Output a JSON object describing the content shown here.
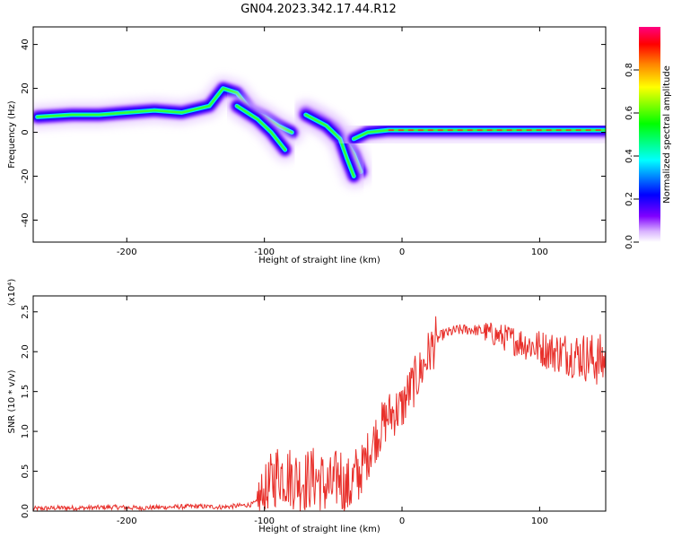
{
  "figure": {
    "title": "GN04.2023.342.17.44.R12"
  },
  "chart_data": [
    {
      "type": "heatmap",
      "xlabel": "Height of straight line (km)",
      "ylabel": "Frequency (Hz)",
      "xlim": [
        -268,
        148
      ],
      "ylim": [
        -50,
        48
      ],
      "xticks": [
        -200,
        -100,
        0,
        100
      ],
      "yticks": [
        -40,
        -20,
        0,
        20,
        40
      ],
      "colorbar": {
        "label": "Normalized spectral amplitude",
        "range": [
          0,
          1
        ],
        "ticks": [
          "0.0",
          "0.2",
          "0.4",
          "0.6",
          "0.8"
        ],
        "colormap": [
          "#ffffff",
          "#d9b3ff",
          "#8000ff",
          "#0000ff",
          "#00ffff",
          "#00ff00",
          "#ffff00",
          "#ff8000",
          "#ff0000",
          "#ff0080"
        ]
      },
      "ridges": [
        {
          "x": [
            -265,
            -240,
            -220,
            -200,
            -180,
            -160,
            -140,
            -130,
            -120,
            -110,
            -100,
            -90,
            -80
          ],
          "y": [
            7,
            8,
            8,
            9,
            10,
            9,
            12,
            20,
            18,
            10,
            7,
            3,
            0
          ]
        },
        {
          "x": [
            -120,
            -105,
            -95,
            -85
          ],
          "y": [
            12,
            6,
            0,
            -8
          ]
        },
        {
          "x": [
            -70,
            -60,
            -50,
            -40,
            -35,
            -30
          ],
          "y": [
            9,
            6,
            2,
            -5,
            -10,
            -18
          ]
        },
        {
          "x": [
            -70,
            -55,
            -45,
            -40,
            -35
          ],
          "y": [
            8,
            3,
            -3,
            -12,
            -20
          ]
        },
        {
          "x": [
            -35,
            -25,
            -10,
            0,
            20,
            50,
            80,
            100,
            120,
            148
          ],
          "y": [
            -3,
            0,
            1,
            1,
            1,
            1,
            1,
            1,
            1,
            1
          ]
        }
      ]
    },
    {
      "type": "line",
      "xlabel": "Height of straight line (km)",
      "ylabel": "SNR (10 * v/v)",
      "y_multiplier": "(x10⁴)",
      "xlim": [
        -268,
        148
      ],
      "ylim": [
        0,
        2.7
      ],
      "xticks": [
        -200,
        -100,
        0,
        100
      ],
      "yticks": [
        "0.0",
        "0.5",
        "1.0",
        "1.5",
        "2.0",
        "2.5"
      ],
      "color": "#e8302b",
      "series": [
        {
          "x": [
            -268,
            -250,
            -230,
            -210,
            -190,
            -170,
            -150,
            -130,
            -110,
            -100,
            -95,
            -90,
            -85,
            -80,
            -75,
            -70,
            -65,
            -60,
            -55,
            -50,
            -45,
            -42,
            -38,
            -35,
            -30,
            -25,
            -20,
            -15,
            -10,
            -5,
            0,
            5,
            10,
            15,
            20,
            25,
            30,
            40,
            50,
            60,
            70,
            80,
            90,
            100,
            110,
            120,
            130,
            140,
            148
          ],
          "y": [
            0.03,
            0.04,
            0.04,
            0.05,
            0.04,
            0.05,
            0.06,
            0.05,
            0.08,
            0.15,
            0.35,
            0.5,
            0.45,
            0.42,
            0.4,
            0.38,
            0.42,
            0.4,
            0.3,
            0.3,
            0.5,
            0.25,
            0.3,
            0.4,
            0.5,
            0.7,
            0.9,
            1.05,
            1.2,
            1.25,
            1.3,
            1.5,
            1.65,
            1.8,
            2.0,
            2.15,
            2.22,
            2.27,
            2.28,
            2.25,
            2.2,
            2.15,
            2.1,
            2.05,
            2.0,
            1.98,
            1.95,
            1.9,
            1.88
          ]
        }
      ]
    }
  ]
}
